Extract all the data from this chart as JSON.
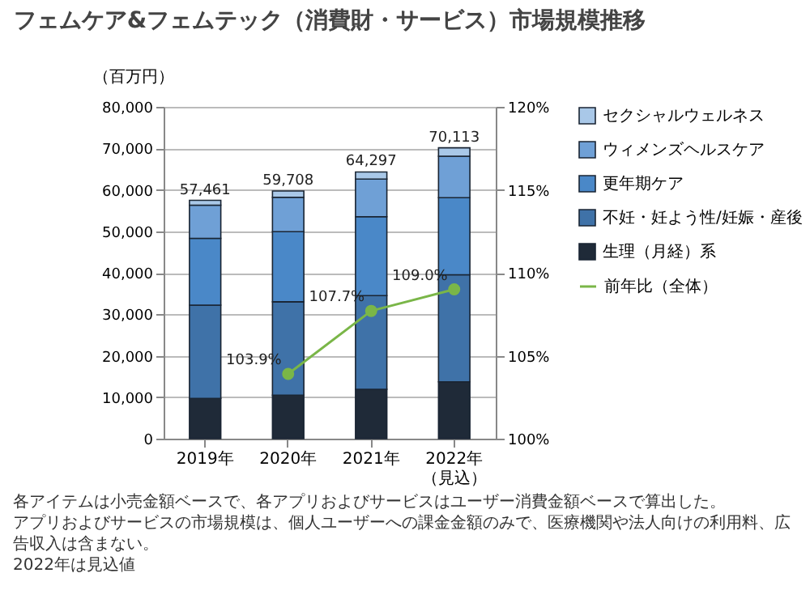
{
  "chart_data": {
    "type": "bar",
    "title": "フェムケア&フェムテック（消費財・サービス）市場規模推移",
    "ylabel": "（百万円）",
    "categories": [
      "2019年",
      "2020年",
      "2021年",
      "2022年（見込）"
    ],
    "stacked": true,
    "ylim": [
      0,
      80000
    ],
    "yticks": [
      0,
      {
        "value": 10000,
        "label": "10,000"
      },
      {
        "value": 20000,
        "label": "20,000"
      },
      {
        "value": 30000,
        "label": "30,000"
      },
      {
        "value": 40000,
        "label": "40,000"
      },
      {
        "value": 50000,
        "label": "50,000"
      },
      {
        "value": 60000,
        "label": "60,000"
      },
      {
        "value": 70000,
        "label": "70,000"
      },
      {
        "value": 80000,
        "label": "80,000"
      }
    ],
    "y2lim": [
      100,
      120
    ],
    "y2ticks": [
      {
        "value": 100,
        "label": "100%"
      },
      {
        "value": 105,
        "label": "105%"
      },
      {
        "value": 110,
        "label": "110%"
      },
      {
        "value": 115,
        "label": "115%"
      },
      {
        "value": 120,
        "label": "120%"
      }
    ],
    "grid": "y",
    "legend": "right",
    "marker": "circle",
    "totals": [
      "57,461",
      "59,708",
      "64,297",
      "70,113"
    ],
    "series": [
      {
        "name": "生理（月経）系",
        "color": "#1f2a38",
        "values": [
          9700,
          10500,
          11900,
          13700
        ]
      },
      {
        "name": "不妊・妊よう性/妊娠・産後",
        "color": "#3f72a8",
        "values": [
          22500,
          22500,
          22600,
          25800
        ]
      },
      {
        "name": "更年期ケア",
        "color": "#4a88c8",
        "values": [
          16100,
          16900,
          19000,
          18600
        ]
      },
      {
        "name": "ウィメンズヘルスケア",
        "color": "#6fa0d6",
        "values": [
          8000,
          8300,
          9100,
          10000
        ]
      },
      {
        "name": "セクシャルウェルネス",
        "color": "#a9c8e8",
        "values": [
          1161,
          1508,
          1697,
          2013
        ]
      },
      {
        "name": "前年比（全体）",
        "type": "line",
        "axis": "y2",
        "color": "#7ab648",
        "values": [
          null,
          103.9,
          107.7,
          109.0
        ],
        "value_labels": [
          null,
          "103.9%",
          "107.7%",
          "109.0%"
        ]
      }
    ],
    "annotations": [
      "各アイテムは小売金額ベースで、各アプリおよびサービスはユーザー消費金額ベースで算出した。",
      "アプリおよびサービスの市場規模は、個人ユーザーへの課金金額のみで、医療機関や法人向けの利用料、広告収入は含まない。",
      "2022年は見込値"
    ]
  }
}
